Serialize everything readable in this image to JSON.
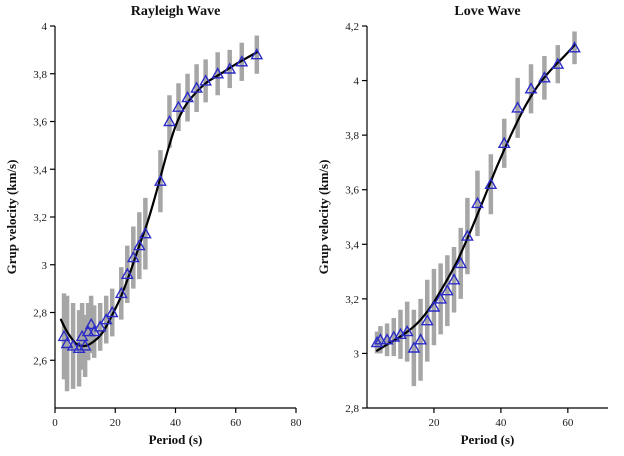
{
  "figure": {
    "background": "#ffffff"
  },
  "colors": {
    "marker": "#2b2bc8",
    "errorbar": "#a6a6a6",
    "curve": "#000000",
    "axis": "#000000",
    "tick_text": "#1a1a1a"
  },
  "chart_data": [
    {
      "type": "scatter",
      "title": "Rayleigh Wave",
      "xlabel": "Period (s)",
      "ylabel": "Grup velocity (km/s)",
      "xlim": [
        0,
        80
      ],
      "ylim": [
        2.4,
        4.0
      ],
      "grid": false,
      "legend": "none",
      "xticks": [
        {
          "v": 0,
          "label": "0"
        },
        {
          "v": 20,
          "label": "20"
        },
        {
          "v": 40,
          "label": "40"
        },
        {
          "v": 60,
          "label": "60"
        },
        {
          "v": 80,
          "label": "80"
        }
      ],
      "yticks": [
        {
          "v": 2.6,
          "label": "2,6"
        },
        {
          "v": 2.8,
          "label": "2,8"
        },
        {
          "v": 3.0,
          "label": "3"
        },
        {
          "v": 3.2,
          "label": "3,2"
        },
        {
          "v": 3.4,
          "label": "3,4"
        },
        {
          "v": 3.6,
          "label": "3,6"
        },
        {
          "v": 3.8,
          "label": "3,8"
        },
        {
          "v": 4.0,
          "label": "4"
        }
      ],
      "series": [
        {
          "name": "observed-group-velocity",
          "style": "scatter-errorbar",
          "points": [
            {
              "x": 3,
              "y": 2.7,
              "e": 0.18
            },
            {
              "x": 4,
              "y": 2.67,
              "e": 0.2
            },
            {
              "x": 6,
              "y": 2.66,
              "e": 0.18
            },
            {
              "x": 8,
              "y": 2.65,
              "e": 0.16
            },
            {
              "x": 9,
              "y": 2.7,
              "e": 0.14
            },
            {
              "x": 10,
              "y": 2.66,
              "e": 0.13
            },
            {
              "x": 11,
              "y": 2.72,
              "e": 0.12
            },
            {
              "x": 12,
              "y": 2.75,
              "e": 0.12
            },
            {
              "x": 13,
              "y": 2.72,
              "e": 0.11
            },
            {
              "x": 15,
              "y": 2.74,
              "e": 0.1
            },
            {
              "x": 17,
              "y": 2.77,
              "e": 0.1
            },
            {
              "x": 19,
              "y": 2.8,
              "e": 0.1
            },
            {
              "x": 22,
              "y": 2.88,
              "e": 0.11
            },
            {
              "x": 24,
              "y": 2.96,
              "e": 0.12
            },
            {
              "x": 26,
              "y": 3.03,
              "e": 0.13
            },
            {
              "x": 28,
              "y": 3.08,
              "e": 0.14
            },
            {
              "x": 30,
              "y": 3.13,
              "e": 0.15
            },
            {
              "x": 35,
              "y": 3.35,
              "e": 0.13
            },
            {
              "x": 38,
              "y": 3.6,
              "e": 0.11
            },
            {
              "x": 41,
              "y": 3.66,
              "e": 0.1
            },
            {
              "x": 44,
              "y": 3.7,
              "e": 0.1
            },
            {
              "x": 47,
              "y": 3.74,
              "e": 0.1
            },
            {
              "x": 50,
              "y": 3.77,
              "e": 0.09
            },
            {
              "x": 54,
              "y": 3.8,
              "e": 0.09
            },
            {
              "x": 58,
              "y": 3.82,
              "e": 0.08
            },
            {
              "x": 62,
              "y": 3.85,
              "e": 0.08
            },
            {
              "x": 67,
              "y": 3.88,
              "e": 0.08
            }
          ]
        },
        {
          "name": "fitted-dispersion-curve",
          "style": "line",
          "points": [
            [
              2,
              2.77
            ],
            [
              4,
              2.72
            ],
            [
              7,
              2.67
            ],
            [
              10,
              2.66
            ],
            [
              13,
              2.68
            ],
            [
              16,
              2.72
            ],
            [
              19,
              2.79
            ],
            [
              22,
              2.87
            ],
            [
              25,
              2.97
            ],
            [
              28,
              3.08
            ],
            [
              31,
              3.19
            ],
            [
              34,
              3.32
            ],
            [
              37,
              3.46
            ],
            [
              40,
              3.58
            ],
            [
              43,
              3.66
            ],
            [
              46,
              3.71
            ],
            [
              50,
              3.76
            ],
            [
              55,
              3.8
            ],
            [
              60,
              3.84
            ],
            [
              67,
              3.89
            ]
          ]
        }
      ]
    },
    {
      "type": "scatter",
      "title": "Love Wave",
      "xlabel": "Period (s)",
      "ylabel": "Grup velocity (km/s)",
      "xlim": [
        0,
        72
      ],
      "ylim": [
        2.8,
        4.2
      ],
      "grid": false,
      "legend": "none",
      "xticks": [
        {
          "v": 20,
          "label": "20"
        },
        {
          "v": 40,
          "label": "40"
        },
        {
          "v": 60,
          "label": "60"
        }
      ],
      "yticks": [
        {
          "v": 2.8,
          "label": "2,8"
        },
        {
          "v": 3.0,
          "label": "3"
        },
        {
          "v": 3.2,
          "label": "3,2"
        },
        {
          "v": 3.4,
          "label": "3,4"
        },
        {
          "v": 3.6,
          "label": "3,6"
        },
        {
          "v": 3.8,
          "label": "3,8"
        },
        {
          "v": 4.0,
          "label": "4"
        },
        {
          "v": 4.2,
          "label": "4,2"
        }
      ],
      "series": [
        {
          "name": "observed-group-velocity",
          "style": "scatter-errorbar",
          "points": [
            {
              "x": 3,
              "y": 3.04,
              "e": 0.04
            },
            {
              "x": 4,
              "y": 3.05,
              "e": 0.05
            },
            {
              "x": 6,
              "y": 3.05,
              "e": 0.06
            },
            {
              "x": 8,
              "y": 3.06,
              "e": 0.07
            },
            {
              "x": 10,
              "y": 3.07,
              "e": 0.09
            },
            {
              "x": 12,
              "y": 3.08,
              "e": 0.11
            },
            {
              "x": 14,
              "y": 3.02,
              "e": 0.14
            },
            {
              "x": 16,
              "y": 3.05,
              "e": 0.15
            },
            {
              "x": 18,
              "y": 3.12,
              "e": 0.15
            },
            {
              "x": 20,
              "y": 3.17,
              "e": 0.14
            },
            {
              "x": 22,
              "y": 3.2,
              "e": 0.13
            },
            {
              "x": 24,
              "y": 3.23,
              "e": 0.13
            },
            {
              "x": 26,
              "y": 3.27,
              "e": 0.12
            },
            {
              "x": 28,
              "y": 3.33,
              "e": 0.13
            },
            {
              "x": 30,
              "y": 3.43,
              "e": 0.14
            },
            {
              "x": 33,
              "y": 3.55,
              "e": 0.12
            },
            {
              "x": 37,
              "y": 3.62,
              "e": 0.11
            },
            {
              "x": 41,
              "y": 3.77,
              "e": 0.09
            },
            {
              "x": 45,
              "y": 3.9,
              "e": 0.11
            },
            {
              "x": 49,
              "y": 3.97,
              "e": 0.09
            },
            {
              "x": 53,
              "y": 4.01,
              "e": 0.08
            },
            {
              "x": 57,
              "y": 4.06,
              "e": 0.07
            },
            {
              "x": 62,
              "y": 4.12,
              "e": 0.06
            }
          ]
        },
        {
          "name": "fitted-dispersion-curve",
          "style": "line",
          "points": [
            [
              3,
              3.01
            ],
            [
              7,
              3.04
            ],
            [
              11,
              3.07
            ],
            [
              15,
              3.11
            ],
            [
              19,
              3.17
            ],
            [
              23,
              3.25
            ],
            [
              27,
              3.34
            ],
            [
              31,
              3.45
            ],
            [
              35,
              3.57
            ],
            [
              39,
              3.69
            ],
            [
              43,
              3.8
            ],
            [
              47,
              3.9
            ],
            [
              51,
              3.98
            ],
            [
              55,
              4.04
            ],
            [
              59,
              4.09
            ],
            [
              62,
              4.13
            ]
          ]
        }
      ]
    }
  ]
}
